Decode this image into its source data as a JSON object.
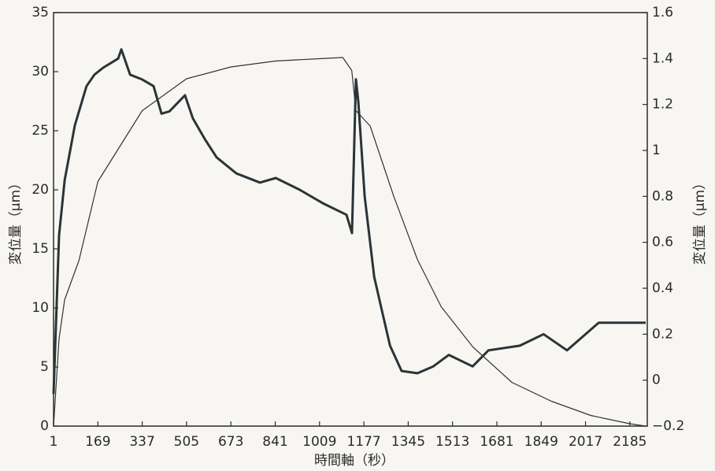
{
  "chart_data": {
    "type": "line",
    "xlabel": "時間軸（秒）",
    "ylabel": "変位量（μm）",
    "y2label": "変位量（μm）",
    "xlim": [
      1,
      2251
    ],
    "xticks": [
      1,
      169,
      337,
      505,
      673,
      841,
      1009,
      1177,
      1345,
      1513,
      1681,
      1849,
      2017,
      2185
    ],
    "ylim": [
      0,
      35
    ],
    "yticks": [
      0,
      5,
      10,
      15,
      20,
      25,
      30,
      35
    ],
    "y2lim": [
      -0.2,
      1.6
    ],
    "y2ticks": [
      {
        "value": -0.2,
        "label": "−0.2"
      },
      0,
      0.2,
      0.4,
      0.6,
      0.8,
      1,
      1.2,
      1.4,
      1.6
    ],
    "series": [
      {
        "color": "#333333",
        "width": 1.2,
        "x": [
          1,
          22,
          43,
          97,
          169,
          337,
          505,
          673,
          841,
          1009,
          1097,
          1131,
          1147,
          1201,
          1291,
          1380,
          1470,
          1590,
          1738,
          1888,
          2037,
          2185,
          2245
        ],
        "values": [
          0,
          7.4,
          10.7,
          14,
          20.7,
          26.7,
          29.4,
          30.4,
          30.9,
          31.1,
          31.2,
          30.1,
          26.7,
          25.4,
          19.4,
          14.1,
          10.1,
          6.7,
          3.7,
          2.1,
          0.9,
          0.2,
          0
        ]
      },
      {
        "color": "#2a3438",
        "width": 3,
        "axis": "y2",
        "x": [
          1,
          22,
          43,
          82,
          126,
          156,
          189,
          246,
          258,
          291,
          335,
          380,
          410,
          440,
          499,
          529,
          574,
          619,
          694,
          783,
          843,
          932,
          1022,
          1111,
          1132,
          1147,
          1156,
          1180,
          1216,
          1246,
          1276,
          1320,
          1380,
          1440,
          1499,
          1589,
          1649,
          1768,
          1858,
          1947,
          2067,
          2156,
          2245
        ],
        "values": [
          -0.06,
          0.63,
          0.87,
          1.11,
          1.28,
          1.33,
          1.36,
          1.4,
          1.44,
          1.33,
          1.31,
          1.28,
          1.16,
          1.17,
          1.24,
          1.14,
          1.05,
          0.97,
          0.9,
          0.86,
          0.88,
          0.83,
          0.77,
          0.72,
          0.64,
          1.31,
          1.21,
          0.8,
          0.45,
          0.3,
          0.15,
          0.04,
          0.03,
          0.06,
          0.11,
          0.06,
          0.13,
          0.15,
          0.2,
          0.13,
          0.25,
          0.25,
          0.25
        ]
      }
    ]
  }
}
